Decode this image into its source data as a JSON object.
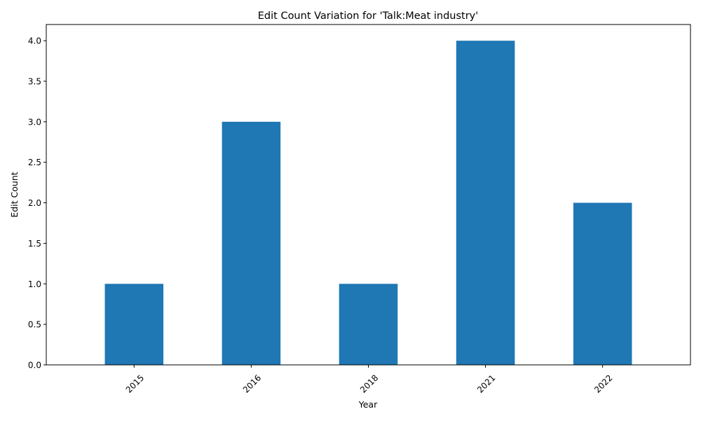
{
  "chart_data": {
    "type": "bar",
    "title": "Edit Count Variation for 'Talk:Meat industry'",
    "xlabel": "Year",
    "ylabel": "Edit Count",
    "categories": [
      "2015",
      "2016",
      "2018",
      "2021",
      "2022"
    ],
    "values": [
      1,
      3,
      1,
      4,
      2
    ],
    "ylim": [
      0,
      4.2
    ],
    "yticks": [
      0.0,
      0.5,
      1.0,
      1.5,
      2.0,
      2.5,
      3.0,
      3.5,
      4.0
    ],
    "ytick_labels": [
      "0.0",
      "0.5",
      "1.0",
      "1.5",
      "2.0",
      "2.5",
      "3.0",
      "3.5",
      "4.0"
    ],
    "bar_color": "#1f77b4",
    "grid": false,
    "legend": "none"
  }
}
